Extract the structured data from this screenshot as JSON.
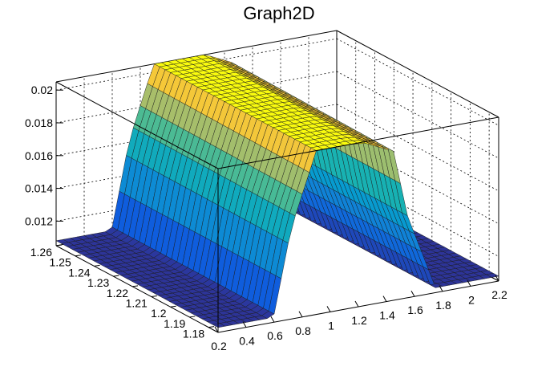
{
  "chart_data": {
    "type": "surface3d",
    "title": "Graph2D",
    "xlabel": "",
    "ylabel": "",
    "zlabel": "",
    "xlim": [
      0.2,
      2.2
    ],
    "ylim": [
      1.175,
      1.26
    ],
    "zlim": [
      0.0105,
      0.0205
    ],
    "x_ticks": [
      "0.2",
      "0.4",
      "0.6",
      "0.8",
      "1",
      "1.2",
      "1.4",
      "1.6",
      "1.8",
      "2",
      "2.2"
    ],
    "y_ticks": [
      "1.18",
      "1.19",
      "1.2",
      "1.21",
      "1.22",
      "1.23",
      "1.24",
      "1.25",
      "1.26"
    ],
    "z_ticks": [
      "0.012",
      "0.014",
      "0.016",
      "0.018",
      "0.02"
    ],
    "grid": true,
    "colormap": "viridis-like (ROOT kBird)",
    "profile_along_x": {
      "x": [
        0.2,
        0.55,
        0.6,
        0.72,
        0.9,
        1.05,
        1.25,
        1.45,
        1.55,
        1.75,
        2.2
      ],
      "z": [
        0.0108,
        0.0108,
        0.011,
        0.016,
        0.0205,
        0.0206,
        0.0204,
        0.0196,
        0.0155,
        0.0108,
        0.0108
      ]
    },
    "profile_along_y": {
      "y": [
        1.175,
        1.26
      ],
      "scale": [
        1.0,
        1.015
      ]
    }
  }
}
